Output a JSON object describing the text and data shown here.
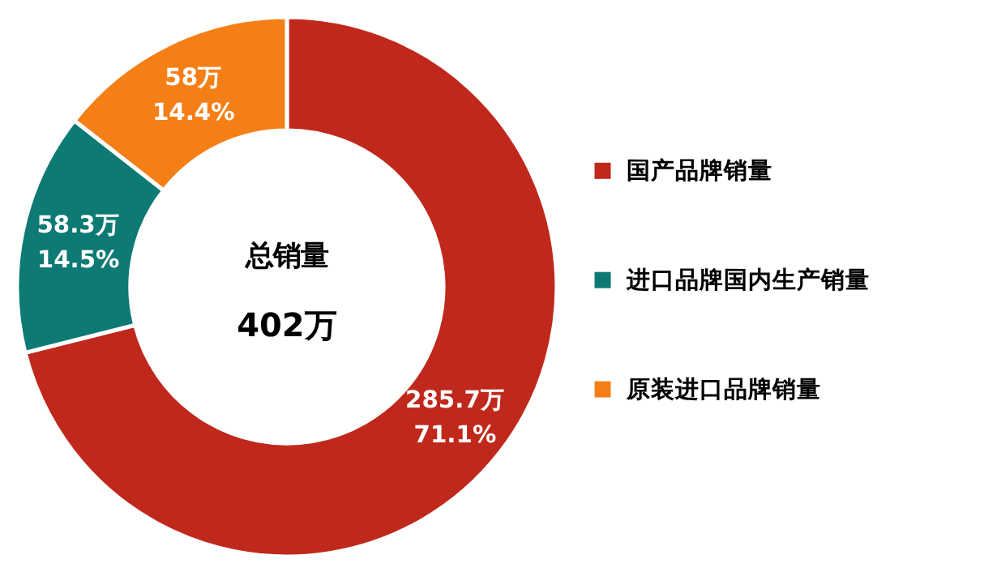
{
  "chart_data": {
    "type": "donut",
    "categories": [
      "国产品牌销量",
      "进口品牌国内生产销量",
      "原装进口品牌销量"
    ],
    "values": [
      285.7,
      58.3,
      58
    ],
    "colors": [
      "#c0281c",
      "#0d7a74",
      "#f57f17"
    ],
    "value_labels": [
      "285.7万\n71.1%",
      "58.3万\n14.5%",
      "58万\n14.4%"
    ],
    "annotations": [
      "总销量",
      "402万"
    ],
    "legend": "right"
  }
}
